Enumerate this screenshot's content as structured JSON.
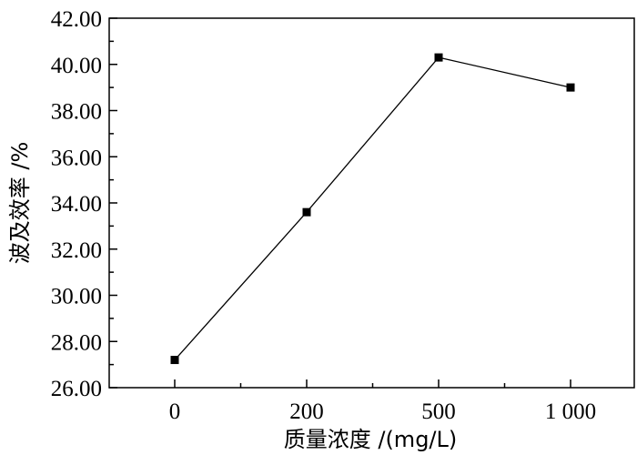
{
  "chart_data": {
    "type": "line",
    "categories": [
      "0",
      "200",
      "500",
      "1 000"
    ],
    "series": [
      {
        "values": [
          27.2,
          33.6,
          40.3,
          39.0
        ]
      }
    ],
    "xlabel": "质量浓度 /(mg/L)",
    "ylabel": "波及效率 /%",
    "ylim": [
      26,
      42
    ],
    "yticks": [
      "26.00",
      "28.00",
      "30.00",
      "32.00",
      "34.00",
      "36.00",
      "38.00",
      "40.00",
      "42.00"
    ],
    "grid": false,
    "marker": "square",
    "colors": {
      "line": "#000000",
      "marker": "#000000",
      "axes": "#000000"
    }
  }
}
